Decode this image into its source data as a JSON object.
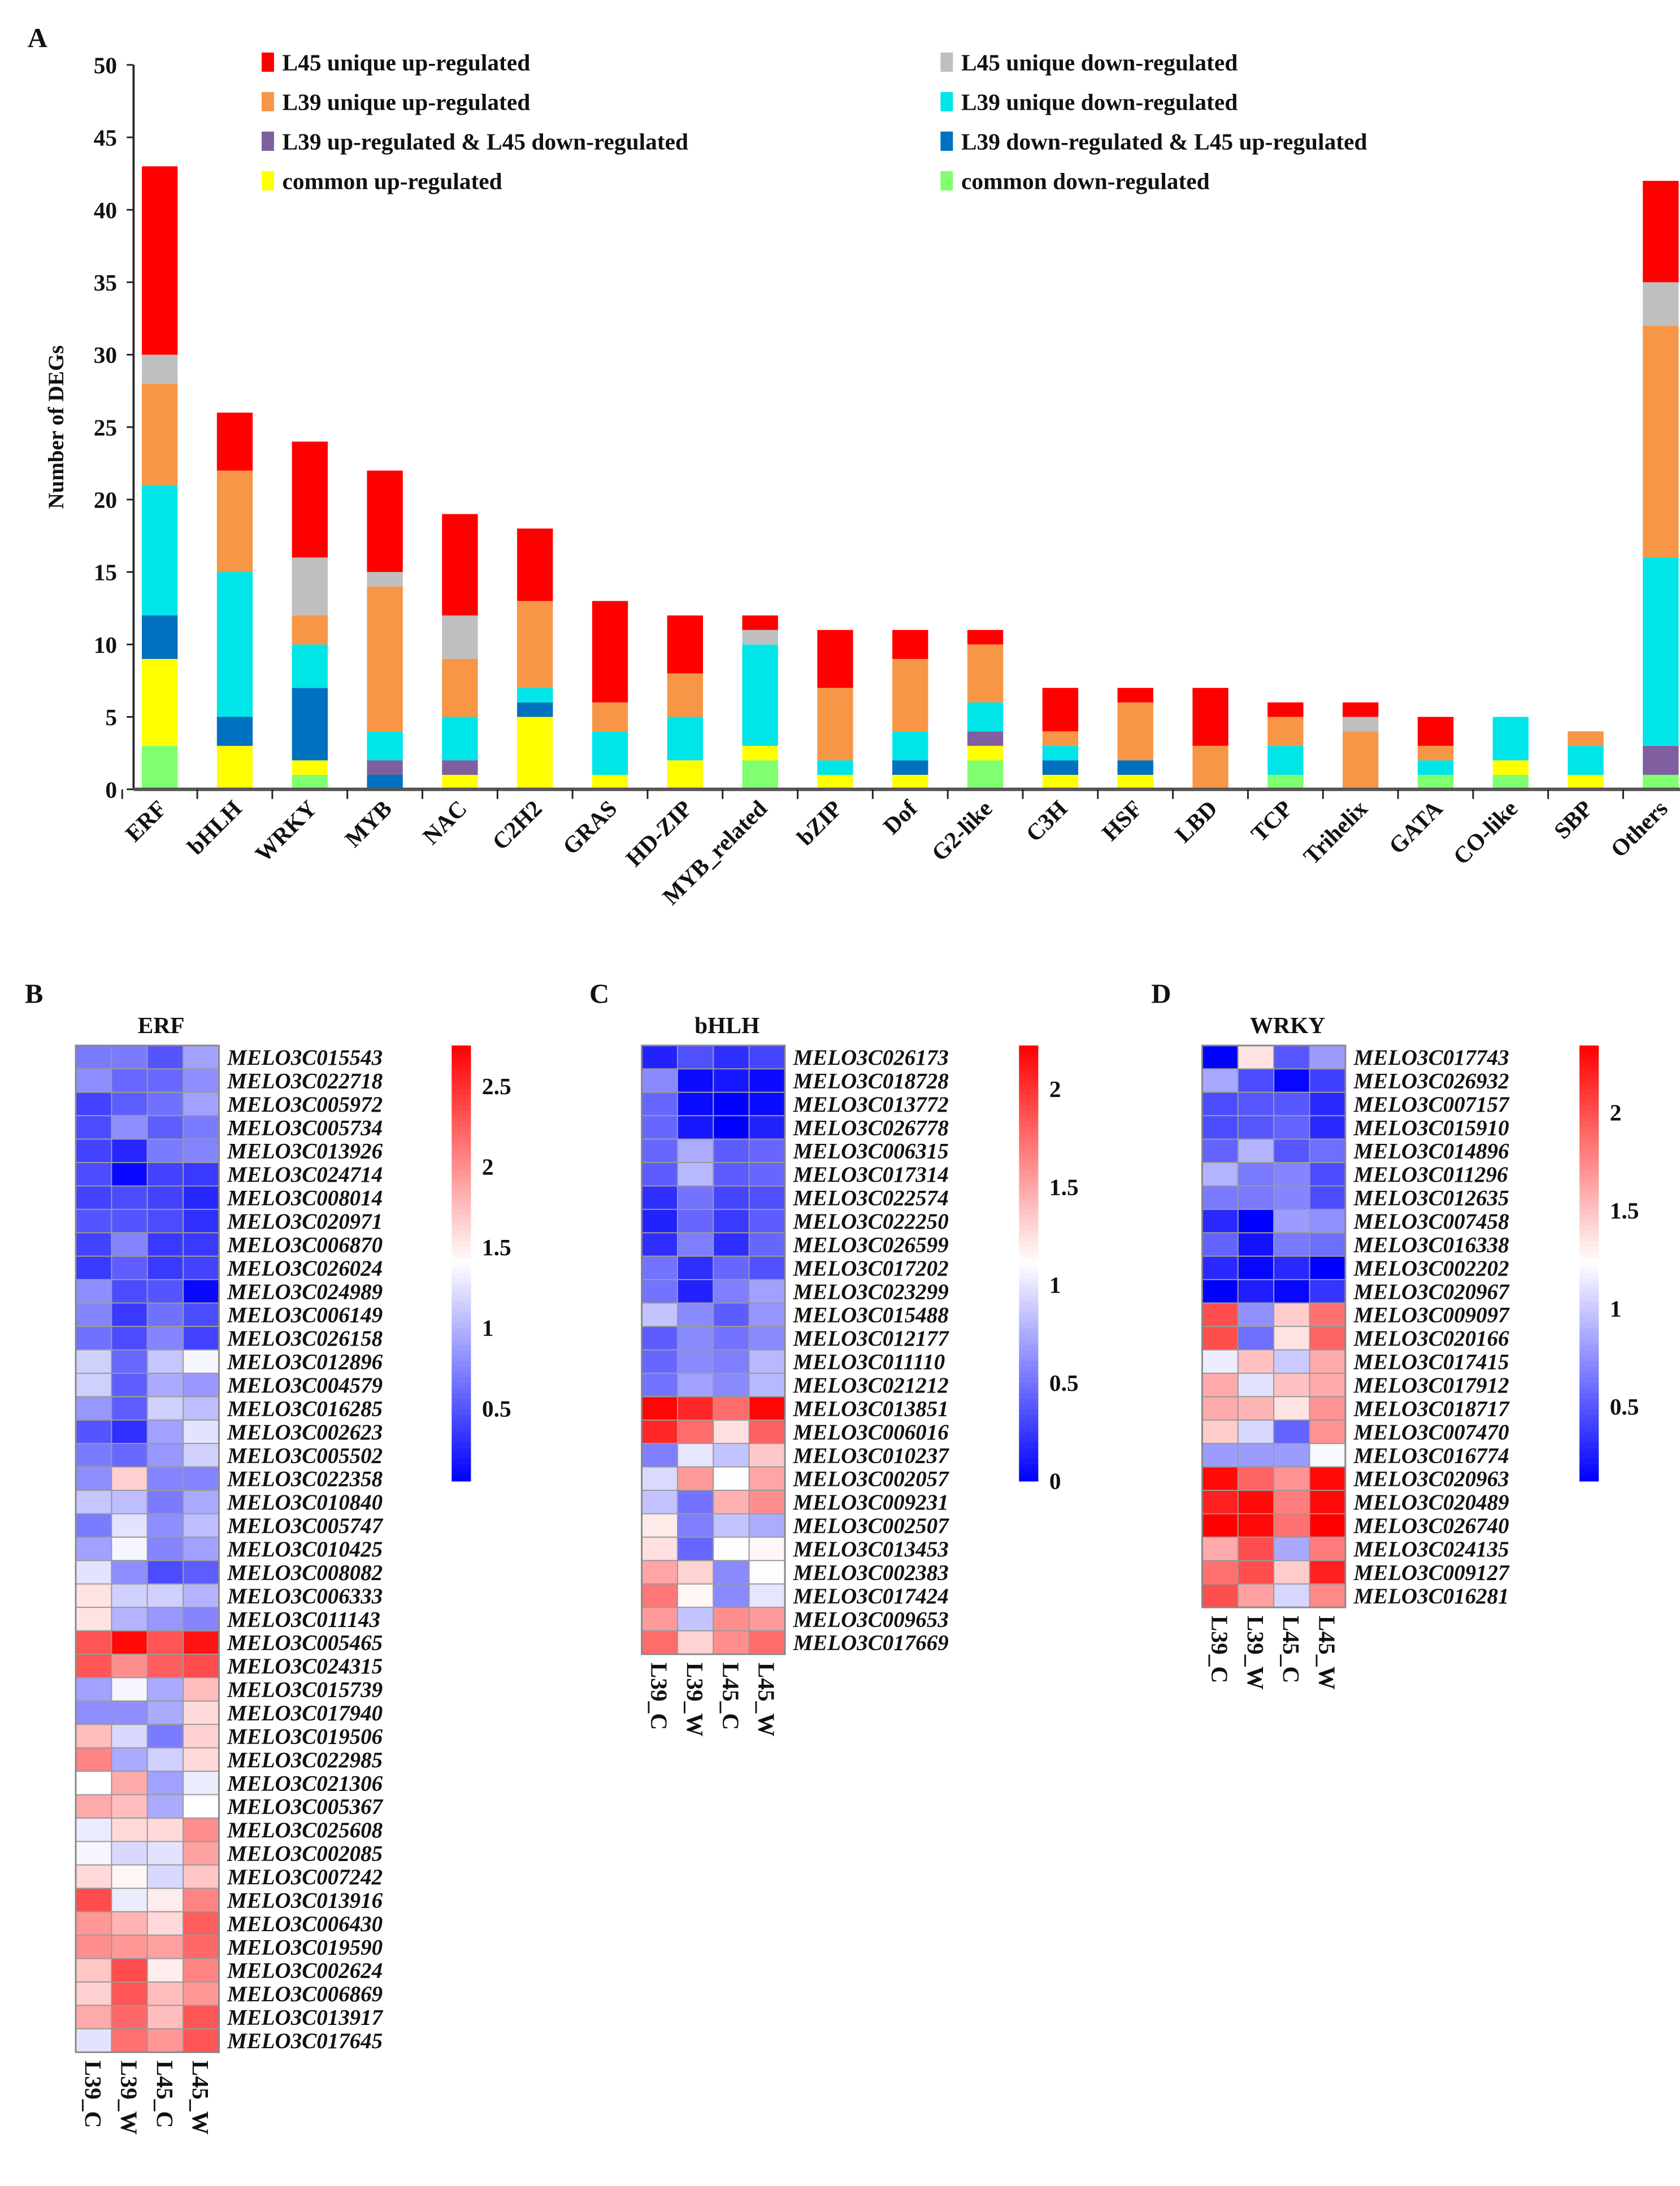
{
  "panels": {
    "a": "A",
    "b": "B",
    "c": "C",
    "d": "D"
  },
  "chart_data": [
    {
      "type": "bar",
      "stacked": true,
      "title": "",
      "xlabel": "",
      "ylabel": "Number of DEGs",
      "ylim": [
        0,
        50
      ],
      "yticks": [
        "0",
        "5",
        "10",
        "15",
        "20",
        "25",
        "30",
        "35",
        "40",
        "45",
        "50"
      ],
      "grid": false,
      "legend_placement": "top",
      "categories": [
        "ERF",
        "bHLH",
        "WRKY",
        "MYB",
        "NAC",
        "C2H2",
        "GRAS",
        "HD-ZIP",
        "MYB_related",
        "bZIP",
        "Dof",
        "G2-like",
        "C3H",
        "HSF",
        "LBD",
        "TCP",
        "Trihelix",
        "GATA",
        "CO-like",
        "SBP",
        "Others"
      ],
      "series": [
        {
          "name": "common down-regulated",
          "color": "#80ff70",
          "values": [
            3,
            0,
            1,
            0,
            0,
            0,
            0,
            0,
            2,
            0,
            0,
            2,
            0,
            0,
            0,
            1,
            0,
            1,
            1,
            0,
            1
          ]
        },
        {
          "name": "common up-regulated",
          "color": "#ffff00",
          "values": [
            6,
            3,
            1,
            0,
            1,
            5,
            1,
            2,
            1,
            1,
            1,
            1,
            1,
            1,
            0,
            0,
            0,
            0,
            1,
            1,
            0
          ]
        },
        {
          "name": "L39 down-regulated & L45 up-regulated",
          "color": "#0070c0",
          "values": [
            3,
            2,
            5,
            1,
            0,
            1,
            0,
            0,
            0,
            0,
            1,
            0,
            1,
            1,
            0,
            0,
            0,
            0,
            0,
            0,
            0
          ]
        },
        {
          "name": "L39 up-regulated & L45 down-regulated",
          "color": "#7f5f9f",
          "values": [
            0,
            0,
            0,
            1,
            1,
            0,
            0,
            0,
            0,
            0,
            0,
            1,
            0,
            0,
            0,
            0,
            0,
            0,
            0,
            0,
            2
          ]
        },
        {
          "name": "L39 unique down-regulated",
          "color": "#00e5e8",
          "values": [
            9,
            10,
            3,
            2,
            3,
            1,
            3,
            3,
            7,
            1,
            2,
            2,
            1,
            0,
            0,
            2,
            0,
            1,
            3,
            2,
            13
          ]
        },
        {
          "name": "L39 unique up-regulated",
          "color": "#f79646",
          "values": [
            7,
            7,
            2,
            10,
            4,
            6,
            2,
            3,
            0,
            5,
            5,
            4,
            1,
            4,
            3,
            2,
            4,
            1,
            0,
            1,
            16
          ]
        },
        {
          "name": "L45 unique down-regulated",
          "color": "#bfbfbf",
          "values": [
            2,
            0,
            4,
            1,
            3,
            0,
            0,
            0,
            1,
            0,
            0,
            0,
            0,
            0,
            0,
            0,
            1,
            0,
            0,
            0,
            3
          ]
        },
        {
          "name": "L45 unique up-regulated",
          "color": "#ff0000",
          "values": [
            13,
            4,
            8,
            7,
            7,
            5,
            7,
            4,
            1,
            4,
            2,
            1,
            3,
            1,
            4,
            1,
            1,
            2,
            0,
            0,
            7
          ]
        }
      ]
    },
    {
      "type": "heatmap",
      "title": "ERF",
      "columns": [
        "L39_C",
        "L39_W",
        "L45_C",
        "L45_W"
      ],
      "range": [
        0.05,
        2.75
      ],
      "colorbar_ticks": [
        "0.5",
        "1",
        "1.5",
        "2",
        "2.5"
      ],
      "rows": [
        "MELO3C015543",
        "MELO3C022718",
        "MELO3C005972",
        "MELO3C005734",
        "MELO3C013926",
        "MELO3C024714",
        "MELO3C008014",
        "MELO3C020971",
        "MELO3C006870",
        "MELO3C026024",
        "MELO3C024989",
        "MELO3C006149",
        "MELO3C026158",
        "MELO3C012896",
        "MELO3C004579",
        "MELO3C016285",
        "MELO3C002623",
        "MELO3C005502",
        "MELO3C022358",
        "MELO3C010840",
        "MELO3C005747",
        "MELO3C010425",
        "MELO3C008082",
        "MELO3C006333",
        "MELO3C011143",
        "MELO3C005465",
        "MELO3C024315",
        "MELO3C015739",
        "MELO3C017940",
        "MELO3C019506",
        "MELO3C022985",
        "MELO3C021306",
        "MELO3C005367",
        "MELO3C025608",
        "MELO3C002085",
        "MELO3C007242",
        "MELO3C013916",
        "MELO3C006430",
        "MELO3C019590",
        "MELO3C002624",
        "MELO3C006869",
        "MELO3C013917",
        "MELO3C017645"
      ],
      "values": [
        [
          0.7,
          0.7,
          0.5,
          0.9
        ],
        [
          0.8,
          0.6,
          0.6,
          0.8
        ],
        [
          0.4,
          0.55,
          0.65,
          0.9
        ],
        [
          0.45,
          0.8,
          0.55,
          0.7
        ],
        [
          0.4,
          0.25,
          0.7,
          0.75
        ],
        [
          0.45,
          0.1,
          0.4,
          0.35
        ],
        [
          0.4,
          0.45,
          0.4,
          0.25
        ],
        [
          0.5,
          0.5,
          0.45,
          0.3
        ],
        [
          0.4,
          0.75,
          0.35,
          0.35
        ],
        [
          0.35,
          0.55,
          0.35,
          0.4
        ],
        [
          0.8,
          0.45,
          0.5,
          0.1
        ],
        [
          0.75,
          0.35,
          0.65,
          0.45
        ],
        [
          0.65,
          0.45,
          0.75,
          0.4
        ],
        [
          1.15,
          0.6,
          1.1,
          1.35
        ],
        [
          1.15,
          0.55,
          0.95,
          0.85
        ],
        [
          0.85,
          0.55,
          1.15,
          1.05
        ],
        [
          0.5,
          0.3,
          0.9,
          1.25
        ],
        [
          0.7,
          0.6,
          0.85,
          1.15
        ],
        [
          0.8,
          1.65,
          0.75,
          0.75
        ],
        [
          1.1,
          1.05,
          0.7,
          0.95
        ],
        [
          0.7,
          1.25,
          0.8,
          1.05
        ],
        [
          0.9,
          1.35,
          0.75,
          0.9
        ],
        [
          1.25,
          0.8,
          0.45,
          0.55
        ],
        [
          1.55,
          1.15,
          1.15,
          1.0
        ],
        [
          1.55,
          1.0,
          0.85,
          0.75
        ],
        [
          2.3,
          2.7,
          2.3,
          2.65
        ],
        [
          2.3,
          2.0,
          2.25,
          2.35
        ],
        [
          0.9,
          1.35,
          0.95,
          1.75
        ],
        [
          0.8,
          0.8,
          0.95,
          1.6
        ],
        [
          1.75,
          1.2,
          0.7,
          1.65
        ],
        [
          2.05,
          0.95,
          1.15,
          1.6
        ],
        [
          1.4,
          1.85,
          0.9,
          1.3
        ],
        [
          1.85,
          1.75,
          0.95,
          1.4
        ],
        [
          1.3,
          1.6,
          1.6,
          2.0
        ],
        [
          1.35,
          1.2,
          1.25,
          1.9
        ],
        [
          1.6,
          1.45,
          1.2,
          1.7
        ],
        [
          2.35,
          1.3,
          1.5,
          2.05
        ],
        [
          1.95,
          1.8,
          1.6,
          2.25
        ],
        [
          2.0,
          1.95,
          1.9,
          2.2
        ],
        [
          1.7,
          2.35,
          1.5,
          2.05
        ],
        [
          1.65,
          2.3,
          1.75,
          1.95
        ],
        [
          1.85,
          2.2,
          1.75,
          2.3
        ],
        [
          1.25,
          2.15,
          1.95,
          2.3
        ]
      ]
    },
    {
      "type": "heatmap",
      "title": "bHLH",
      "columns": [
        "L39_C",
        "L39_W",
        "L45_C",
        "L45_W"
      ],
      "range": [
        0,
        2.22
      ],
      "colorbar_ticks": [
        "0",
        "0.5",
        "1",
        "1.5",
        "2"
      ],
      "rows": [
        "MELO3C026173",
        "MELO3C018728",
        "MELO3C013772",
        "MELO3C026778",
        "MELO3C006315",
        "MELO3C017314",
        "MELO3C022574",
        "MELO3C022250",
        "MELO3C026599",
        "MELO3C017202",
        "MELO3C023299",
        "MELO3C015488",
        "MELO3C012177",
        "MELO3C011110",
        "MELO3C021212",
        "MELO3C013851",
        "MELO3C006016",
        "MELO3C010237",
        "MELO3C002057",
        "MELO3C009231",
        "MELO3C002507",
        "MELO3C013453",
        "MELO3C002383",
        "MELO3C017424",
        "MELO3C009653",
        "MELO3C017669"
      ],
      "values": [
        [
          0.15,
          0.35,
          0.2,
          0.3
        ],
        [
          0.6,
          0.05,
          0.1,
          0.05
        ],
        [
          0.45,
          0.05,
          0.0,
          0.05
        ],
        [
          0.45,
          0.1,
          0.0,
          0.15
        ],
        [
          0.45,
          0.75,
          0.4,
          0.45
        ],
        [
          0.4,
          0.8,
          0.4,
          0.45
        ],
        [
          0.2,
          0.5,
          0.3,
          0.35
        ],
        [
          0.15,
          0.45,
          0.25,
          0.4
        ],
        [
          0.2,
          0.55,
          0.2,
          0.45
        ],
        [
          0.5,
          0.2,
          0.45,
          0.35
        ],
        [
          0.5,
          0.15,
          0.55,
          0.7
        ],
        [
          0.85,
          0.6,
          0.4,
          0.65
        ],
        [
          0.4,
          0.6,
          0.5,
          0.6
        ],
        [
          0.45,
          0.6,
          0.55,
          0.8
        ],
        [
          0.5,
          0.7,
          0.6,
          0.8
        ],
        [
          2.2,
          2.05,
          1.75,
          2.2
        ],
        [
          2.05,
          1.75,
          1.25,
          1.8
        ],
        [
          0.55,
          1.0,
          0.85,
          1.35
        ],
        [
          0.95,
          1.55,
          1.1,
          1.5
        ],
        [
          0.85,
          0.5,
          1.45,
          1.6
        ],
        [
          1.2,
          0.55,
          0.85,
          0.75
        ],
        [
          1.25,
          0.45,
          1.1,
          1.15
        ],
        [
          1.5,
          1.3,
          0.6,
          1.1
        ],
        [
          1.7,
          1.15,
          0.6,
          1.0
        ],
        [
          1.55,
          0.85,
          1.6,
          1.55
        ],
        [
          1.75,
          1.3,
          1.6,
          1.75
        ]
      ]
    },
    {
      "type": "heatmap",
      "title": "WRKY",
      "columns": [
        "L39_C",
        "L39_W",
        "L45_C",
        "L45_W"
      ],
      "range": [
        0.12,
        2.34
      ],
      "colorbar_ticks": [
        "0.5",
        "1",
        "1.5",
        "2"
      ],
      "rows": [
        "MELO3C017743",
        "MELO3C026932",
        "MELO3C007157",
        "MELO3C015910",
        "MELO3C014896",
        "MELO3C011296",
        "MELO3C012635",
        "MELO3C007458",
        "MELO3C016338",
        "MELO3C002202",
        "MELO3C020967",
        "MELO3C009097",
        "MELO3C020166",
        "MELO3C017415",
        "MELO3C017912",
        "MELO3C018717",
        "MELO3C007470",
        "MELO3C016774",
        "MELO3C020963",
        "MELO3C020489",
        "MELO3C026740",
        "MELO3C024135",
        "MELO3C009127",
        "MELO3C016281"
      ],
      "values": [
        [
          0.12,
          1.35,
          0.5,
          0.8
        ],
        [
          0.85,
          0.45,
          0.15,
          0.4
        ],
        [
          0.45,
          0.5,
          0.5,
          0.3
        ],
        [
          0.45,
          0.5,
          0.55,
          0.3
        ],
        [
          0.55,
          0.9,
          0.5,
          0.6
        ],
        [
          0.9,
          0.65,
          0.7,
          0.45
        ],
        [
          0.65,
          0.65,
          0.7,
          0.45
        ],
        [
          0.3,
          0.12,
          0.8,
          0.75
        ],
        [
          0.55,
          0.2,
          0.65,
          0.6
        ],
        [
          0.3,
          0.15,
          0.3,
          0.12
        ],
        [
          0.12,
          0.25,
          0.15,
          0.35
        ],
        [
          2.0,
          0.75,
          1.45,
          1.85
        ],
        [
          2.0,
          0.6,
          1.35,
          1.9
        ],
        [
          1.15,
          1.5,
          1.0,
          1.6
        ],
        [
          1.6,
          1.1,
          1.5,
          1.6
        ],
        [
          1.6,
          1.55,
          1.35,
          1.7
        ],
        [
          1.45,
          1.05,
          0.55,
          1.7
        ],
        [
          0.8,
          0.8,
          0.8,
          1.2
        ],
        [
          2.3,
          1.9,
          1.7,
          2.3
        ],
        [
          2.2,
          2.3,
          1.8,
          2.3
        ],
        [
          2.34,
          2.3,
          1.85,
          2.34
        ],
        [
          1.6,
          2.0,
          0.85,
          1.8
        ],
        [
          1.85,
          2.0,
          1.45,
          2.2
        ],
        [
          2.0,
          1.65,
          1.05,
          1.75
        ]
      ]
    }
  ]
}
